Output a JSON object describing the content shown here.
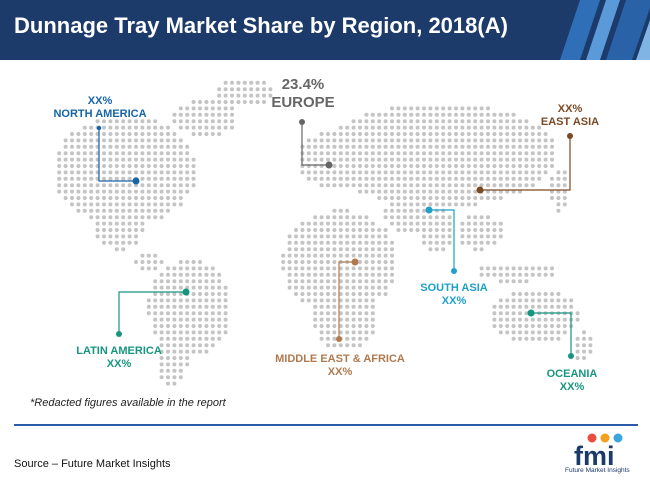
{
  "title": "Dunnage Tray Market Share by Region, 2018(A)",
  "regions": {
    "north_america": {
      "value": "XX%",
      "name": "NORTH AMERICA",
      "color": "#1565a8"
    },
    "europe": {
      "value": "23.4%",
      "name": "EUROPE",
      "color": "#666666"
    },
    "east_asia": {
      "value": "XX%",
      "name": "EAST ASIA",
      "color": "#7a4a24"
    },
    "south_asia": {
      "value": "XX%",
      "name": "SOUTH ASIA",
      "color": "#1ea0c8"
    },
    "latin_america": {
      "value": "XX%",
      "name": "LATIN AMERICA",
      "color": "#17967f"
    },
    "middle_east_africa": {
      "value": "XX%",
      "name": "MIDDLE EAST & AFRICA",
      "color": "#b07a4e"
    },
    "oceania": {
      "value": "XX%",
      "name": "OCEANIA",
      "color": "#17967f"
    }
  },
  "footnote": "*Redacted figures available in the report",
  "source": "Source – Future Market Insights",
  "logo": {
    "letters": "fmi",
    "subtitle": "Future Market Insights",
    "icon": "fmi-logo-icon"
  },
  "colors": {
    "header": "#1c3a6a",
    "rule": "#2a5aa8",
    "map_dots": "#c4c4c4"
  }
}
